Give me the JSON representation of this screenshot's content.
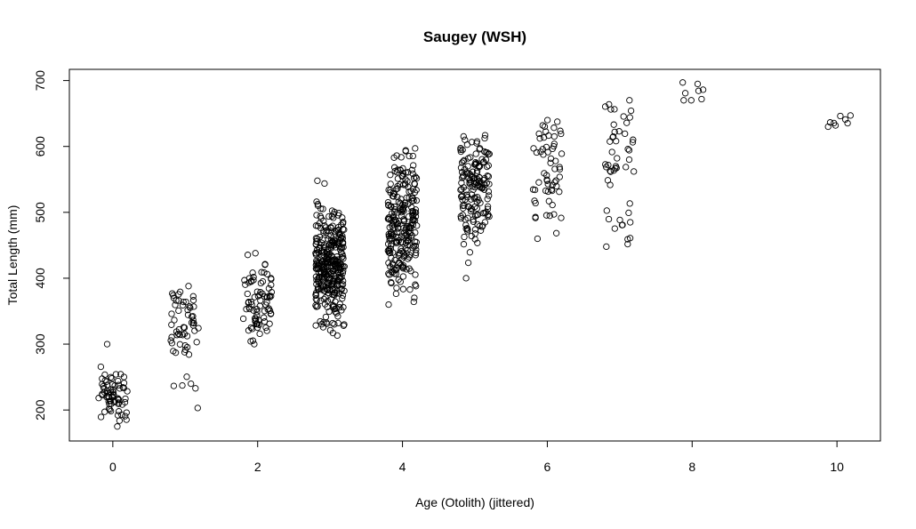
{
  "chart_data": {
    "type": "scatter",
    "title": "Saugey (WSH)",
    "xlabel": "Age (Otolith) (jittered)",
    "ylabel": "Total Length (mm)",
    "xlim": [
      -0.6,
      10.6
    ],
    "ylim": [
      153,
      717
    ],
    "x_ticks": [
      0,
      2,
      4,
      6,
      8,
      10
    ],
    "y_ticks": [
      200,
      300,
      400,
      500,
      600,
      700
    ],
    "marker": "open-circle",
    "grid": false,
    "legend": "none",
    "groups": [
      {
        "age": 0,
        "n": 70,
        "range": [
          175,
          300
        ],
        "center": 225,
        "sd": 20
      },
      {
        "age": 1,
        "n": 60,
        "range": [
          203,
          388
        ],
        "center": 330,
        "sd": 45
      },
      {
        "age": 2,
        "n": 80,
        "range": [
          300,
          438
        ],
        "center": 360,
        "sd": 32
      },
      {
        "age": 3,
        "n": 330,
        "range": [
          313,
          548
        ],
        "center": 418,
        "sd": 42
      },
      {
        "age": 4,
        "n": 250,
        "range": [
          360,
          597
        ],
        "center": 475,
        "sd": 58
      },
      {
        "age": 5,
        "n": 160,
        "range": [
          400,
          617
        ],
        "center": 535,
        "sd": 45
      },
      {
        "age": 6,
        "n": 60,
        "range": [
          460,
          640
        ],
        "center": 565,
        "sd": 50
      },
      {
        "age": 7,
        "n": 50,
        "range": [
          448,
          670
        ],
        "center": 590,
        "sd": 60
      },
      {
        "age": 8,
        "n": 8,
        "range": [
          670,
          697
        ],
        "center": 683,
        "sd": 9
      },
      {
        "age": 10,
        "n": 8,
        "range": [
          630,
          647
        ],
        "center": 638,
        "sd": 5
      }
    ],
    "colors": {
      "marker": "#000000",
      "background": "#ffffff",
      "axis": "#000000"
    }
  }
}
